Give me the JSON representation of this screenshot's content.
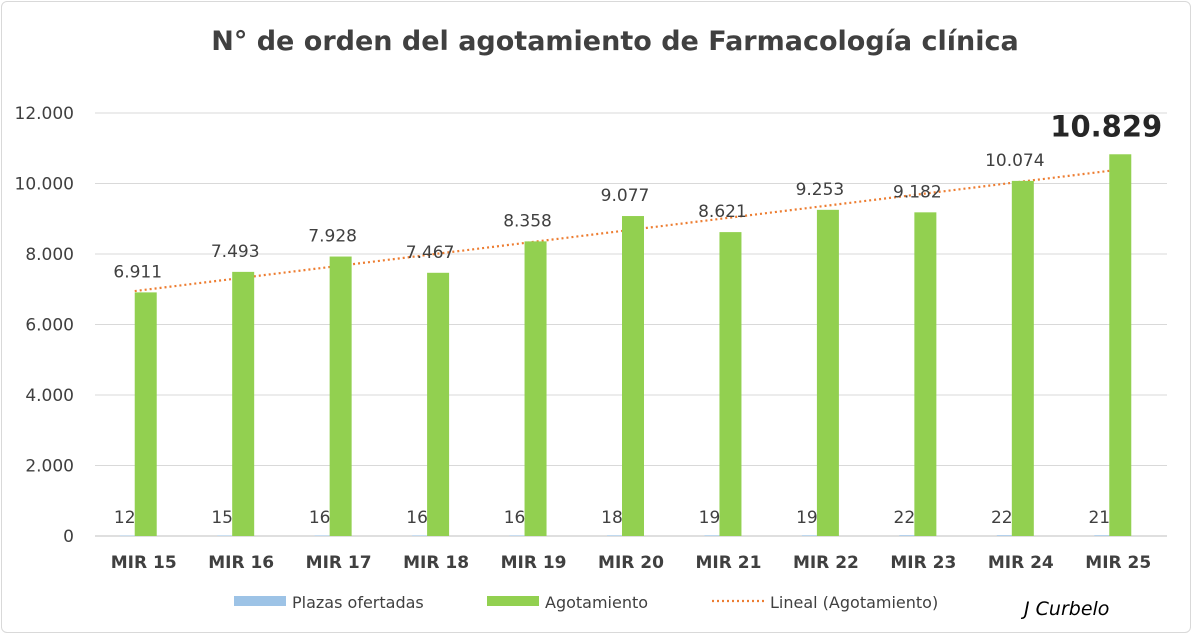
{
  "chart_data": {
    "type": "bar",
    "title": "N° de orden del agotamiento de Farmacología clínica",
    "categories": [
      "MIR 15",
      "MIR 16",
      "MIR 17",
      "MIR 18",
      "MIR 19",
      "MIR 20",
      "MIR 21",
      "MIR 22",
      "MIR 23",
      "MIR 24",
      "MIR 25"
    ],
    "series": [
      {
        "name": "Plazas ofertadas",
        "color": "#9dc3e6",
        "values": [
          12,
          15,
          16,
          16,
          16,
          18,
          19,
          19,
          22,
          22,
          21
        ],
        "labels": [
          "12",
          "15",
          "16",
          "16",
          "16",
          "18",
          "19",
          "19",
          "22",
          "22",
          "21"
        ]
      },
      {
        "name": "Agotamiento",
        "color": "#92d050",
        "values": [
          6911,
          7493,
          7928,
          7467,
          8358,
          9077,
          8621,
          9253,
          9182,
          10074,
          10829
        ],
        "labels": [
          "6.911",
          "7.493",
          "7.928",
          "7.467",
          "8.358",
          "9.077",
          "8.621",
          "9.253",
          "9.182",
          "10.074",
          "10.829"
        ],
        "highlight_last": true
      }
    ],
    "trendline": {
      "name": "Lineal (Agotamiento)",
      "color": "#ed7d31",
      "style": "dotted",
      "type": "linear"
    },
    "yaxis": {
      "min": 0,
      "max": 12000,
      "ticks": [
        0,
        2000,
        4000,
        6000,
        8000,
        10000,
        12000
      ],
      "tick_labels": [
        "0",
        "2.000",
        "4.000",
        "6.000",
        "8.000",
        "10.000",
        "12.000"
      ]
    },
    "grid": true,
    "legend_position": "bottom",
    "credit": "J Curbelo"
  }
}
